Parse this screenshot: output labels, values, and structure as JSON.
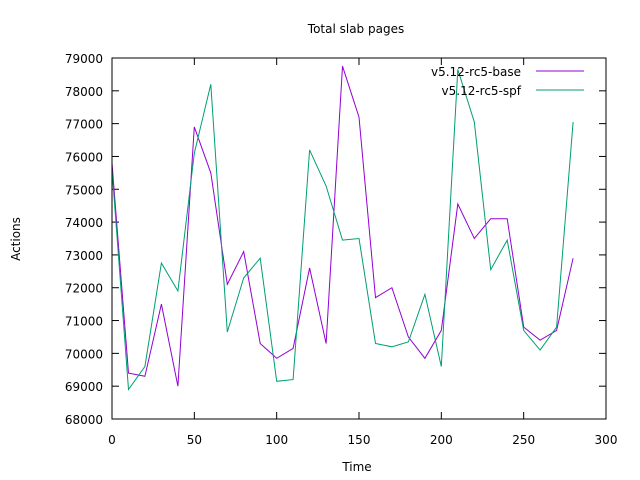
{
  "chart_data": {
    "type": "line",
    "title": "Total slab pages",
    "xlabel": "Time",
    "ylabel": "Actions",
    "xlim": [
      0,
      300
    ],
    "ylim": [
      68000,
      79000
    ],
    "xticks": [
      0,
      50,
      100,
      150,
      200,
      250,
      300
    ],
    "yticks": [
      68000,
      69000,
      70000,
      71000,
      72000,
      73000,
      74000,
      75000,
      76000,
      77000,
      78000,
      79000
    ],
    "grid": false,
    "legend": "top-right",
    "x": [
      0,
      10,
      20,
      30,
      40,
      50,
      60,
      70,
      80,
      90,
      100,
      110,
      120,
      130,
      140,
      150,
      160,
      170,
      180,
      190,
      200,
      210,
      220,
      230,
      240,
      250,
      260,
      270,
      280
    ],
    "series": [
      {
        "name": "v5.12-rc5-base",
        "color": "#9400d3",
        "values": [
          75800,
          69400,
          69300,
          71500,
          69000,
          76900,
          75500,
          72100,
          73100,
          70300,
          69850,
          70150,
          72600,
          70300,
          78750,
          77200,
          71700,
          72000,
          70500,
          69850,
          70700,
          74550,
          73500,
          74100,
          74100,
          70800,
          70400,
          70700,
          72900
        ]
      },
      {
        "name": "v5.12-rc5-spf",
        "color": "#009e73",
        "values": [
          75600,
          68900,
          69600,
          72750,
          71900,
          76100,
          78200,
          70650,
          72300,
          72900,
          69150,
          69200,
          76200,
          75100,
          73450,
          73500,
          70300,
          70200,
          70350,
          71800,
          69600,
          78650,
          77050,
          72550,
          73450,
          70700,
          70100,
          70800,
          77050
        ]
      }
    ]
  }
}
